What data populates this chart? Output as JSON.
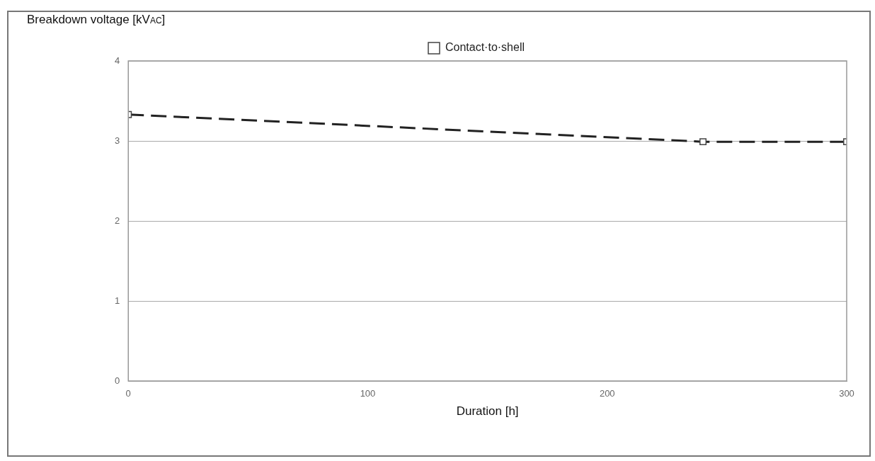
{
  "chart_data": {
    "type": "line",
    "ylabel": "Breakdown voltage [kV$_{AC}$]",
    "xlabel": "Duration [h]",
    "x": [
      0,
      240,
      300
    ],
    "series": [
      {
        "name": "Contact·to·shell",
        "color": "#222222",
        "values": [
          3.33,
          2.99,
          2.99
        ]
      }
    ],
    "xlim": [
      0,
      300
    ],
    "xticks": [
      0,
      100,
      200,
      300
    ],
    "ylim": [
      0,
      4
    ],
    "yticks": [
      0,
      1,
      2,
      3,
      4
    ],
    "grid": "y",
    "legend": "top",
    "marker": "square",
    "line_style": "dashed"
  }
}
